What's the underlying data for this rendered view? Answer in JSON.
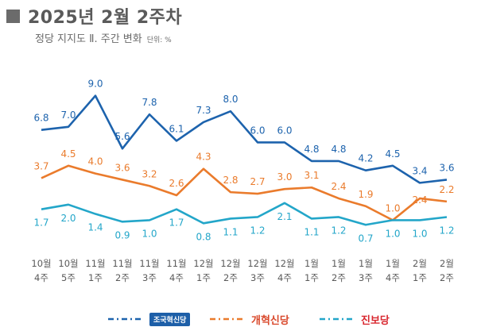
{
  "header": {
    "title": "2025년 2월 2주차",
    "subtitle": "정당 지지도 Ⅱ. 주간 변화",
    "unit": "단위: %"
  },
  "colors": {
    "series1": "#1d63ad",
    "series2": "#ea7b2c",
    "series3": "#23a6c9"
  },
  "chart_data": {
    "type": "line",
    "categories": [
      [
        "10월",
        "4주"
      ],
      [
        "10월",
        "5주"
      ],
      [
        "11월",
        "1주"
      ],
      [
        "11월",
        "2주"
      ],
      [
        "11월",
        "3주"
      ],
      [
        "11월",
        "4주"
      ],
      [
        "12월",
        "1주"
      ],
      [
        "12월",
        "2주"
      ],
      [
        "12월",
        "3주"
      ],
      [
        "12월",
        "4주"
      ],
      [
        "1월",
        "1주"
      ],
      [
        "1월",
        "2주"
      ],
      [
        "1월",
        "3주"
      ],
      [
        "1월",
        "4주"
      ],
      [
        "2월",
        "1주"
      ],
      [
        "2월",
        "2주"
      ]
    ],
    "series": [
      {
        "name": "조국혁신당",
        "values": [
          6.8,
          7.0,
          9.0,
          5.6,
          7.8,
          6.1,
          7.3,
          8.0,
          6.0,
          6.0,
          4.8,
          4.8,
          4.2,
          4.5,
          3.4,
          3.6
        ]
      },
      {
        "name": "개혁신당",
        "values": [
          3.7,
          4.5,
          4.0,
          3.6,
          3.2,
          2.6,
          4.3,
          2.8,
          2.7,
          3.0,
          3.1,
          2.4,
          1.9,
          1.0,
          2.4,
          2.2
        ]
      },
      {
        "name": "진보당",
        "values": [
          1.7,
          2.0,
          1.4,
          0.9,
          1.0,
          1.7,
          0.8,
          1.1,
          1.2,
          2.1,
          1.1,
          1.2,
          0.7,
          1.0,
          1.0,
          1.2
        ]
      }
    ]
  },
  "legend": [
    {
      "label": "조국혁신당"
    },
    {
      "label": "개혁신당"
    },
    {
      "label": "진보당"
    }
  ]
}
